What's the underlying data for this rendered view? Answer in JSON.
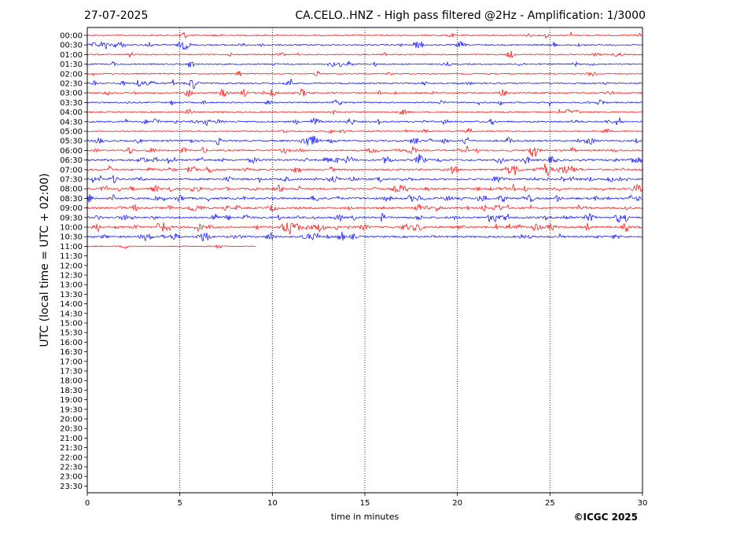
{
  "header": {
    "date": "27-07-2025",
    "title": "CA.CELO..HNZ - High pass filtered @2Hz - Amplification: 1/3000"
  },
  "footer": {
    "copyright": "©ICGC 2025"
  },
  "chart_data": {
    "type": "line",
    "title": "CA.CELO..HNZ - High pass filtered @2Hz - Amplification: 1/3000",
    "xlabel": "time in minutes",
    "ylabel": "UTC (local time = UTC + 02:00)",
    "xlim": [
      0,
      30
    ],
    "xticks": [
      "0",
      "5",
      "10",
      "15",
      "20",
      "25",
      "30"
    ],
    "grid": "vertical dotted lines at 5, 10, 15, 20, 25",
    "ytick_labels": [
      "00:00",
      "00:30",
      "01:00",
      "01:30",
      "02:00",
      "02:30",
      "03:00",
      "03:30",
      "04:00",
      "04:30",
      "05:00",
      "05:30",
      "06:00",
      "06:30",
      "07:00",
      "07:30",
      "08:00",
      "08:30",
      "09:00",
      "09:30",
      "10:00",
      "10:30",
      "11:00",
      "11:30",
      "12:00",
      "12:30",
      "13:00",
      "13:30",
      "14:00",
      "14:30",
      "15:00",
      "15:30",
      "16:00",
      "16:30",
      "17:00",
      "17:30",
      "18:00",
      "18:30",
      "19:00",
      "19:30",
      "20:00",
      "20:30",
      "21:00",
      "21:30",
      "22:00",
      "22:30",
      "23:00",
      "23:30"
    ],
    "trace_colors": [
      "#ff0000",
      "#0000ff"
    ],
    "trace_end_minutes": [
      30,
      30,
      30,
      30,
      30,
      30,
      30,
      30,
      30,
      30,
      30,
      30,
      30,
      30,
      30,
      30,
      30,
      30,
      30,
      30,
      30,
      30,
      9.1
    ],
    "activity_level": [
      0.15,
      0.35,
      0.2,
      0.25,
      0.12,
      0.3,
      0.3,
      0.25,
      0.2,
      0.4,
      0.15,
      0.5,
      0.45,
      0.6,
      0.55,
      0.6,
      0.55,
      0.65,
      0.6,
      0.65,
      0.75,
      0.6,
      0.05
    ]
  }
}
